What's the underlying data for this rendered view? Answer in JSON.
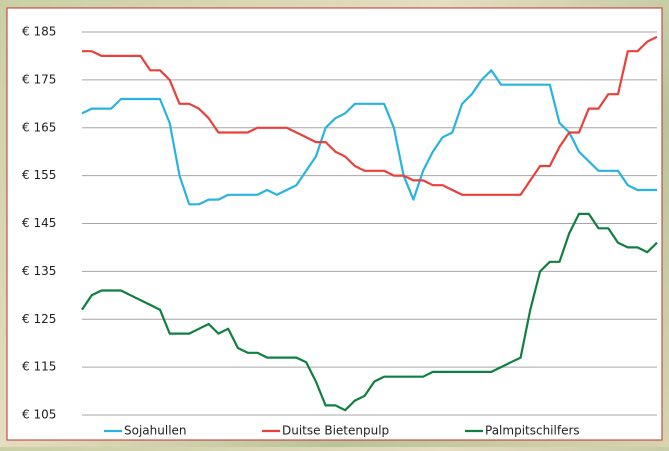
{
  "chart_data": {
    "type": "line",
    "categories": [
      null,
      null,
      null,
      null,
      null,
      null,
      null,
      null,
      null,
      null,
      null,
      null,
      null,
      null,
      null,
      null,
      null,
      null,
      null,
      null,
      null,
      null,
      null,
      null,
      null,
      null,
      null,
      null,
      null,
      null,
      null,
      null,
      null,
      null,
      null,
      null,
      null,
      null,
      null,
      null,
      null,
      null,
      null,
      null,
      null,
      null,
      null,
      null,
      null,
      null,
      null,
      null,
      null,
      null,
      null,
      null,
      null,
      null,
      null,
      null
    ],
    "series": [
      {
        "name": "Sojahullen",
        "color": "#29b3e0",
        "values": [
          168,
          169,
          169,
          169,
          171,
          171,
          171,
          171,
          171,
          166,
          155,
          149,
          149,
          150,
          150,
          151,
          151,
          151,
          151,
          152,
          151,
          152,
          153,
          156,
          159,
          165,
          167,
          168,
          170,
          170,
          170,
          170,
          165,
          155,
          150,
          156,
          160,
          163,
          164,
          170,
          172,
          175,
          177,
          174,
          174,
          174,
          174,
          174,
          174,
          166,
          164,
          160,
          158,
          156,
          156,
          156,
          153,
          152,
          152,
          152
        ]
      },
      {
        "name": "Duitse Bietenpulp",
        "color": "#e8413a",
        "values": [
          181,
          181,
          180,
          180,
          180,
          180,
          180,
          177,
          177,
          175,
          170,
          170,
          169,
          167,
          164,
          164,
          164,
          164,
          165,
          165,
          165,
          165,
          164,
          163,
          162,
          162,
          160,
          159,
          157,
          156,
          156,
          156,
          155,
          155,
          154,
          154,
          153,
          153,
          152,
          151,
          151,
          151,
          151,
          151,
          151,
          151,
          154,
          157,
          157,
          161,
          164,
          164,
          169,
          169,
          172,
          172,
          181,
          181,
          183,
          184
        ]
      },
      {
        "name": "Palmpitschilfers",
        "color": "#0f8040",
        "values": [
          127,
          130,
          131,
          131,
          131,
          130,
          129,
          128,
          127,
          122,
          122,
          122,
          123,
          124,
          122,
          123,
          119,
          118,
          118,
          117,
          117,
          117,
          117,
          116,
          112,
          107,
          107,
          106,
          108,
          109,
          112,
          113,
          113,
          113,
          113,
          113,
          114,
          114,
          114,
          114,
          114,
          114,
          114,
          115,
          116,
          117,
          127,
          135,
          137,
          137,
          143,
          147,
          147,
          144,
          144,
          141,
          140,
          140,
          139,
          141
        ]
      }
    ],
    "ylim": [
      105,
      185
    ],
    "yticks": [
      {
        "value": 105,
        "label": "€ 105"
      },
      {
        "value": 115,
        "label": "€ 115"
      },
      {
        "value": 125,
        "label": "€ 125"
      },
      {
        "value": 135,
        "label": "€ 135"
      },
      {
        "value": 145,
        "label": "€ 145"
      },
      {
        "value": 155,
        "label": "€ 155"
      },
      {
        "value": 165,
        "label": "€ 165"
      },
      {
        "value": 175,
        "label": "€ 175"
      },
      {
        "value": 185,
        "label": "€ 185"
      }
    ],
    "grid": true,
    "legend": "bottom"
  }
}
